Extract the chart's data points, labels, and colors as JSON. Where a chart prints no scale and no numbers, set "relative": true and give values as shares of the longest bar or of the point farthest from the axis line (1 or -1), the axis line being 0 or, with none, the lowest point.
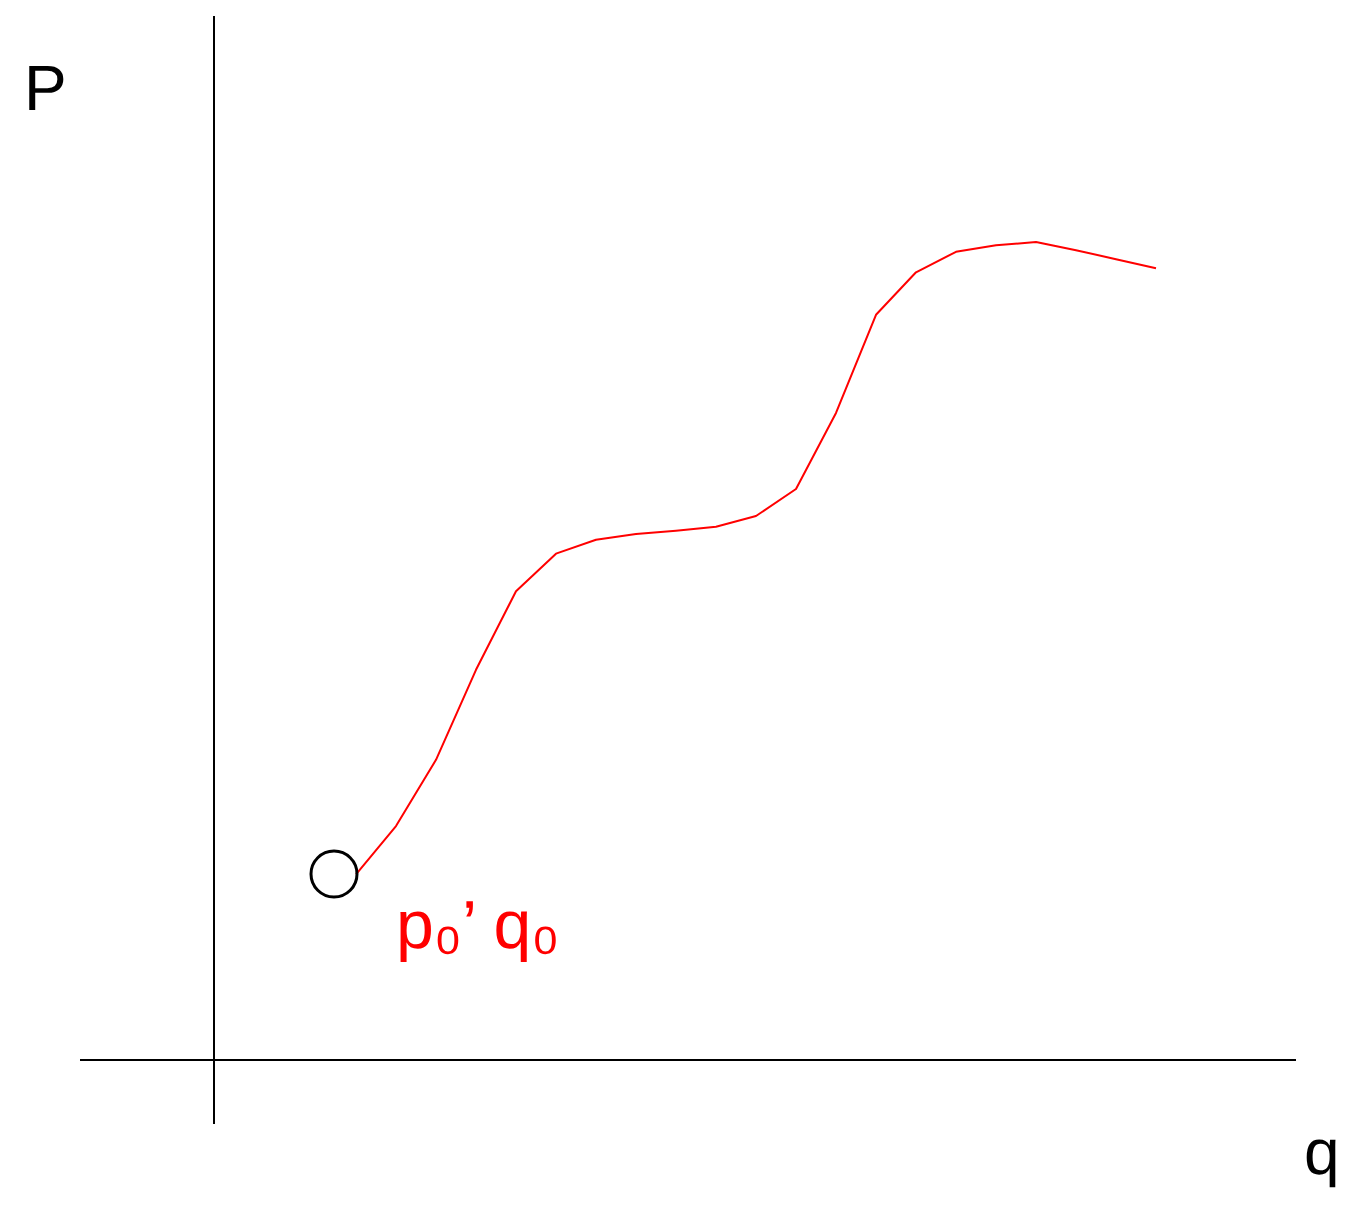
{
  "chart_data": {
    "type": "line",
    "relative": true,
    "xlabel": "q",
    "ylabel": "P",
    "annotations": [
      "p₀’ q₀"
    ],
    "grid": false,
    "categories": [
      null,
      null,
      null,
      null,
      null,
      null,
      null,
      null,
      null,
      null,
      null,
      null,
      null,
      null,
      null,
      null,
      null,
      null,
      null,
      null,
      null
    ],
    "series": [
      {
        "color": "#ff0000",
        "values": [
          0.227,
          0.286,
          0.367,
          0.477,
          0.573,
          0.619,
          0.636,
          0.643,
          0.647,
          0.652,
          0.665,
          0.698,
          0.791,
          0.911,
          0.963,
          0.988,
          0.996,
          1.0,
          0.99,
          0.979,
          0.968
        ]
      }
    ]
  }
}
